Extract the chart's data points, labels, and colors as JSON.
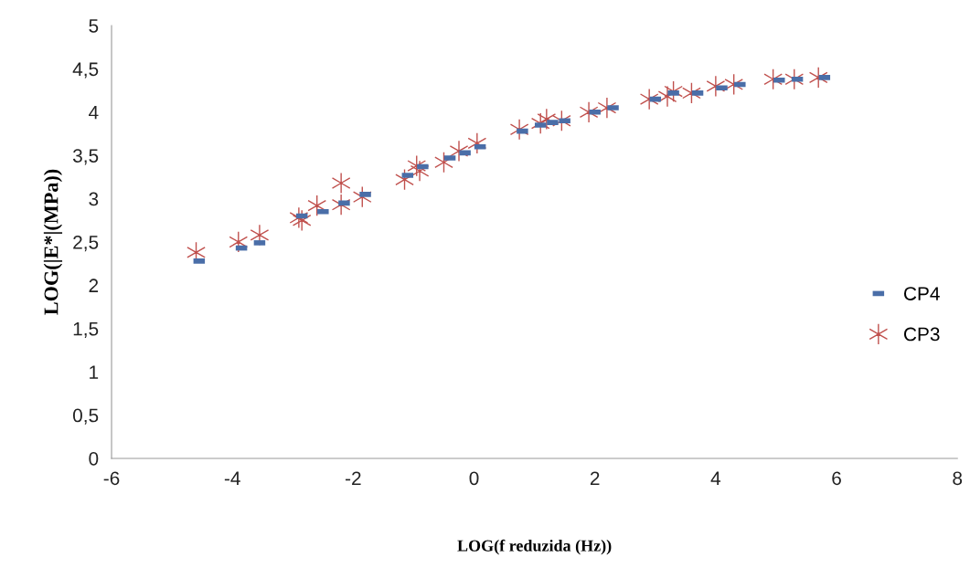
{
  "chart_data": {
    "type": "scatter",
    "xlabel": "LOG(f reduzida (Hz))",
    "ylabel": "LOG(|E*|(MPa))",
    "xlim": [
      -6,
      8
    ],
    "xticks": [
      -6,
      -4,
      -2,
      0,
      2,
      4,
      6,
      8
    ],
    "ylim": [
      0,
      5
    ],
    "yticks": [
      0,
      {
        "value": 0.5,
        "label": "0,5"
      },
      1,
      {
        "value": 1.5,
        "label": "1,5"
      },
      2,
      {
        "value": 2.5,
        "label": "2,5"
      },
      3,
      {
        "value": 3.5,
        "label": "3,5"
      },
      4,
      {
        "value": 4.5,
        "label": "4,5"
      },
      5
    ],
    "grid": false,
    "legend": "right",
    "series": [
      {
        "name": "CP4",
        "color": "#4a6ea8",
        "marker": "square",
        "x": [
          -4.55,
          -3.85,
          -3.55,
          -2.85,
          -2.5,
          -2.15,
          -1.8,
          -1.1,
          -0.85,
          -0.4,
          -0.15,
          0.1,
          0.8,
          1.1,
          1.3,
          1.5,
          2.0,
          2.3,
          3.0,
          3.3,
          3.7,
          4.1,
          4.4,
          5.05,
          5.35,
          5.8
        ],
        "values": [
          2.28,
          2.43,
          2.49,
          2.8,
          2.85,
          2.95,
          3.05,
          3.27,
          3.37,
          3.47,
          3.53,
          3.6,
          3.78,
          3.85,
          3.88,
          3.9,
          4.0,
          4.05,
          4.15,
          4.22,
          4.22,
          4.28,
          4.32,
          4.37,
          4.38,
          4.4
        ]
      },
      {
        "name": "CP3",
        "color": "#c0504d",
        "marker": "cross",
        "x": [
          -4.6,
          -3.9,
          -3.55,
          -2.9,
          -2.85,
          -2.6,
          -2.2,
          -2.2,
          -1.85,
          -1.15,
          -0.95,
          -0.9,
          -0.5,
          -0.25,
          0.05,
          0.75,
          1.1,
          1.2,
          1.45,
          1.9,
          2.2,
          2.9,
          3.2,
          3.3,
          3.6,
          4.0,
          4.3,
          4.95,
          5.3,
          5.7
        ],
        "values": [
          2.38,
          2.5,
          2.58,
          2.78,
          2.75,
          2.92,
          3.18,
          2.93,
          3.02,
          3.22,
          3.38,
          3.32,
          3.42,
          3.55,
          3.64,
          3.8,
          3.87,
          3.92,
          3.9,
          4.0,
          4.05,
          4.15,
          4.18,
          4.24,
          4.22,
          4.3,
          4.32,
          4.38,
          4.38,
          4.4
        ]
      }
    ]
  }
}
